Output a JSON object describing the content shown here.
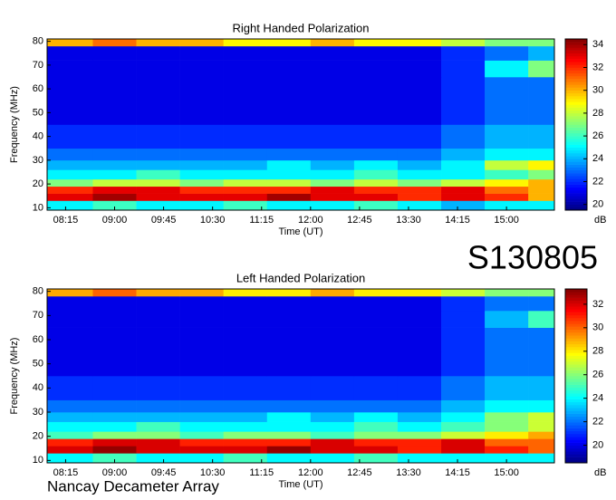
{
  "title": "S130805",
  "caption": "Nancay Decameter Array",
  "chart_data": [
    {
      "type": "heatmap",
      "title": "Right Handed Polarization",
      "x_label": "Time (UT)",
      "y_label": "Frequency (MHz)",
      "colorbar_label": "dB",
      "colormap": "jet",
      "xlim": [
        478,
        944
      ],
      "xticks": [
        {
          "value": 495,
          "label": "08:15"
        },
        {
          "value": 540,
          "label": "09:00"
        },
        {
          "value": 585,
          "label": "09:45"
        },
        {
          "value": 630,
          "label": "10:30"
        },
        {
          "value": 675,
          "label": "11:15"
        },
        {
          "value": 720,
          "label": "12:00"
        },
        {
          "value": 765,
          "label": "12:45"
        },
        {
          "value": 810,
          "label": "13:30"
        },
        {
          "value": 855,
          "label": "14:15"
        },
        {
          "value": 900,
          "label": "15:00"
        }
      ],
      "ylim": [
        9,
        81
      ],
      "yticks": [
        10,
        20,
        30,
        40,
        50,
        60,
        70,
        80
      ],
      "zlim": [
        19.5,
        34.5
      ],
      "zticks": [
        20,
        22,
        24,
        26,
        28,
        30,
        32,
        34
      ],
      "x_edges": [
        478,
        520,
        560,
        600,
        640,
        680,
        720,
        760,
        800,
        840,
        880,
        920,
        944
      ],
      "y_edges": [
        9,
        13,
        16,
        19,
        22,
        26,
        30,
        35,
        45,
        55,
        65,
        72,
        78,
        81
      ],
      "z": [
        [
          25,
          26,
          25,
          25,
          26,
          25,
          25,
          26,
          25,
          24,
          25,
          25
        ],
        [
          33,
          34,
          33,
          33,
          33,
          34,
          33,
          33,
          32,
          33,
          32,
          30
        ],
        [
          32,
          33,
          33,
          32,
          32,
          32,
          33,
          32,
          32,
          33,
          31,
          30
        ],
        [
          27,
          28,
          28,
          27,
          28,
          28,
          27,
          28,
          27,
          28,
          29,
          30
        ],
        [
          25,
          25,
          26,
          25,
          25,
          25,
          25,
          26,
          25,
          25,
          26,
          27
        ],
        [
          24,
          24,
          24,
          24,
          24,
          25,
          24,
          25,
          24,
          25,
          28,
          29
        ],
        [
          23,
          23,
          23,
          23,
          23,
          23,
          23,
          23,
          23,
          24,
          25,
          25
        ],
        [
          22,
          22,
          22,
          22,
          22,
          22,
          22,
          22,
          22,
          23,
          24,
          24
        ],
        [
          21,
          21,
          21,
          21,
          21,
          21,
          21,
          21,
          21,
          22,
          23,
          23
        ],
        [
          21,
          21,
          21,
          21,
          21,
          21,
          21,
          21,
          21,
          22,
          23,
          23
        ],
        [
          21,
          21,
          21,
          21,
          21,
          21,
          21,
          21,
          21,
          22,
          25,
          27
        ],
        [
          21,
          21,
          21,
          21,
          21,
          21,
          21,
          21,
          21,
          22,
          23,
          24
        ],
        [
          30,
          31,
          30,
          30,
          29,
          29,
          30,
          29,
          29,
          28,
          27,
          27
        ]
      ]
    },
    {
      "type": "heatmap",
      "title": "Left Handed Polarization",
      "x_label": "Time (UT)",
      "y_label": "Frequency (MHz)",
      "colorbar_label": "dB",
      "colormap": "jet",
      "xlim": [
        478,
        944
      ],
      "xticks": [
        {
          "value": 495,
          "label": "08:15"
        },
        {
          "value": 540,
          "label": "09:00"
        },
        {
          "value": 585,
          "label": "09:45"
        },
        {
          "value": 630,
          "label": "10:30"
        },
        {
          "value": 675,
          "label": "11:15"
        },
        {
          "value": 720,
          "label": "12:00"
        },
        {
          "value": 765,
          "label": "12:45"
        },
        {
          "value": 810,
          "label": "13:30"
        },
        {
          "value": 855,
          "label": "14:15"
        },
        {
          "value": 900,
          "label": "15:00"
        }
      ],
      "ylim": [
        9,
        81
      ],
      "yticks": [
        10,
        20,
        30,
        40,
        50,
        60,
        70,
        80
      ],
      "zlim": [
        18.5,
        33.3
      ],
      "zticks": [
        20,
        22,
        24,
        26,
        28,
        30,
        32
      ],
      "x_edges": [
        478,
        520,
        560,
        600,
        640,
        680,
        720,
        760,
        800,
        840,
        880,
        920,
        944
      ],
      "y_edges": [
        9,
        13,
        16,
        19,
        22,
        26,
        30,
        35,
        45,
        55,
        65,
        72,
        78,
        81
      ],
      "z": [
        [
          24,
          25,
          24,
          24,
          25,
          24,
          24,
          25,
          24,
          24,
          24,
          24
        ],
        [
          32,
          33,
          32,
          32,
          32,
          33,
          32,
          32,
          31,
          32,
          31,
          30
        ],
        [
          31,
          32,
          32,
          31,
          31,
          31,
          32,
          31,
          31,
          32,
          30,
          30
        ],
        [
          25,
          26,
          26,
          25,
          26,
          26,
          25,
          26,
          26,
          27,
          28,
          29
        ],
        [
          24,
          24,
          25,
          24,
          24,
          24,
          24,
          25,
          24,
          25,
          26,
          27
        ],
        [
          23,
          23,
          23,
          23,
          23,
          24,
          23,
          24,
          23,
          24,
          26,
          27
        ],
        [
          22,
          22,
          22,
          22,
          22,
          22,
          22,
          22,
          22,
          23,
          24,
          24
        ],
        [
          21,
          21,
          21,
          21,
          21,
          21,
          21,
          21,
          21,
          22,
          23,
          23
        ],
        [
          20,
          20,
          20,
          20,
          20,
          20,
          20,
          20,
          20,
          21,
          22,
          22
        ],
        [
          20,
          20,
          20,
          20,
          20,
          20,
          20,
          20,
          20,
          21,
          22,
          22
        ],
        [
          20,
          20,
          20,
          20,
          20,
          20,
          20,
          20,
          20,
          21,
          23,
          25
        ],
        [
          20,
          20,
          20,
          20,
          20,
          20,
          20,
          20,
          20,
          21,
          22,
          22
        ],
        [
          29,
          30,
          29,
          29,
          28,
          28,
          29,
          28,
          28,
          27,
          26,
          26
        ]
      ]
    }
  ]
}
